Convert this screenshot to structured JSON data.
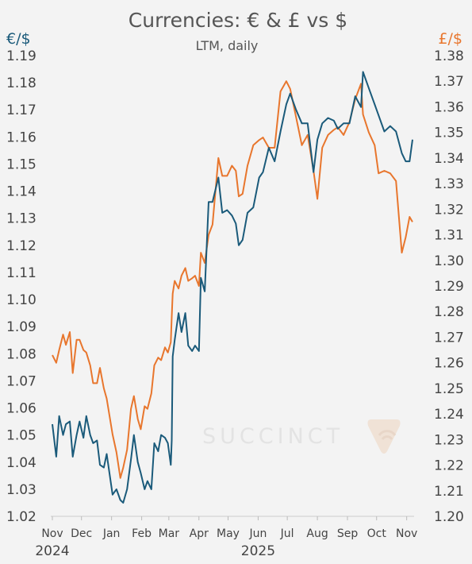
{
  "chart_data": {
    "type": "line",
    "title": "Currencies: € & £ vs $",
    "subtitle": "LTM, daily",
    "y_left": {
      "label": "€/$",
      "range": [
        1.02,
        1.19
      ],
      "ticks": [
        "1.19",
        "1.18",
        "1.17",
        "1.16",
        "1.15",
        "1.14",
        "1.13",
        "1.12",
        "1.11",
        "1.10",
        "1.09",
        "1.08",
        "1.07",
        "1.06",
        "1.05",
        "1.04",
        "1.03",
        "1.02"
      ]
    },
    "y_right": {
      "label": "£/$",
      "range": [
        1.2,
        1.38
      ],
      "ticks": [
        "1.38",
        "1.37",
        "1.36",
        "1.35",
        "1.34",
        "1.33",
        "1.32",
        "1.31",
        "1.30",
        "1.29",
        "1.28",
        "1.27",
        "1.26",
        "1.25",
        "1.24",
        "1.23",
        "1.22",
        "1.21",
        "1.20"
      ]
    },
    "x_months": [
      "Nov",
      "Dec",
      "Jan",
      "Feb",
      "Mar",
      "Apr",
      "May",
      "Jun",
      "Jul",
      "Aug",
      "Sep",
      "Oct",
      "Nov"
    ],
    "x_years": [
      {
        "label": "2024",
        "month_index": 0
      },
      {
        "label": "2025",
        "month_index": 7
      }
    ],
    "grid": false,
    "colors": {
      "eur": "#1a5a7a",
      "gbp": "#e8762d",
      "text": "#444444",
      "watermark": "#e3e3e3"
    },
    "watermark": {
      "text": "SUCCINCT",
      "icon": "succinct-logo-icon"
    },
    "series": [
      {
        "axis": "left",
        "color": "#1a5a7a",
        "x": [
          "2024-11-01",
          "2024-11-05",
          "2024-11-08",
          "2024-11-12",
          "2024-11-15",
          "2024-11-19",
          "2024-11-22",
          "2024-11-26",
          "2024-11-29",
          "2024-12-03",
          "2024-12-06",
          "2024-12-10",
          "2024-12-13",
          "2024-12-17",
          "2024-12-20",
          "2024-12-24",
          "2024-12-27",
          "2025-01-02",
          "2025-01-06",
          "2025-01-10",
          "2025-01-13",
          "2025-01-17",
          "2025-01-21",
          "2025-01-24",
          "2025-01-28",
          "2025-01-31",
          "2025-02-04",
          "2025-02-07",
          "2025-02-11",
          "2025-02-14",
          "2025-02-18",
          "2025-02-21",
          "2025-02-25",
          "2025-02-28",
          "2025-03-03",
          "2025-03-04",
          "2025-03-05",
          "2025-03-07",
          "2025-03-11",
          "2025-03-14",
          "2025-03-18",
          "2025-03-21",
          "2025-03-25",
          "2025-03-28",
          "2025-04-01",
          "2025-04-03",
          "2025-04-07",
          "2025-04-11",
          "2025-04-15",
          "2025-04-21",
          "2025-04-25",
          "2025-04-30",
          "2025-05-05",
          "2025-05-09",
          "2025-05-12",
          "2025-05-16",
          "2025-05-21",
          "2025-05-27",
          "2025-06-02",
          "2025-06-06",
          "2025-06-12",
          "2025-06-18",
          "2025-06-24",
          "2025-06-30",
          "2025-07-04",
          "2025-07-10",
          "2025-07-16",
          "2025-07-22",
          "2025-07-28",
          "2025-08-01",
          "2025-08-06",
          "2025-08-12",
          "2025-08-18",
          "2025-08-22",
          "2025-08-28",
          "2025-09-03",
          "2025-09-09",
          "2025-09-15",
          "2025-09-17",
          "2025-09-23",
          "2025-09-29",
          "2025-10-03",
          "2025-10-09",
          "2025-10-15",
          "2025-10-21",
          "2025-10-27",
          "2025-10-31",
          "2025-11-04",
          "2025-11-07"
        ],
        "values": [
          1.054,
          1.042,
          1.057,
          1.05,
          1.054,
          1.055,
          1.042,
          1.05,
          1.055,
          1.049,
          1.057,
          1.05,
          1.047,
          1.048,
          1.039,
          1.038,
          1.043,
          1.028,
          1.03,
          1.026,
          1.025,
          1.03,
          1.041,
          1.05,
          1.04,
          1.036,
          1.03,
          1.033,
          1.03,
          1.047,
          1.044,
          1.05,
          1.049,
          1.047,
          1.039,
          1.048,
          1.079,
          1.085,
          1.095,
          1.088,
          1.095,
          1.083,
          1.081,
          1.083,
          1.081,
          1.108,
          1.103,
          1.136,
          1.136,
          1.145,
          1.132,
          1.133,
          1.131,
          1.128,
          1.12,
          1.122,
          1.132,
          1.134,
          1.145,
          1.147,
          1.156,
          1.151,
          1.162,
          1.172,
          1.176,
          1.17,
          1.165,
          1.165,
          1.147,
          1.159,
          1.165,
          1.167,
          1.166,
          1.163,
          1.165,
          1.165,
          1.175,
          1.171,
          1.184,
          1.178,
          1.172,
          1.168,
          1.162,
          1.164,
          1.162,
          1.154,
          1.151,
          1.151,
          1.159
        ]
      },
      {
        "axis": "right",
        "color": "#e8762d",
        "x": [
          "2024-11-01",
          "2024-11-05",
          "2024-11-08",
          "2024-11-12",
          "2024-11-15",
          "2024-11-19",
          "2024-11-22",
          "2024-11-26",
          "2024-11-29",
          "2024-12-03",
          "2024-12-06",
          "2024-12-10",
          "2024-12-13",
          "2024-12-17",
          "2024-12-20",
          "2024-12-24",
          "2024-12-27",
          "2025-01-02",
          "2025-01-06",
          "2025-01-10",
          "2025-01-13",
          "2025-01-17",
          "2025-01-21",
          "2025-01-24",
          "2025-01-28",
          "2025-01-31",
          "2025-02-04",
          "2025-02-07",
          "2025-02-11",
          "2025-02-14",
          "2025-02-18",
          "2025-02-21",
          "2025-02-25",
          "2025-02-28",
          "2025-03-03",
          "2025-03-04",
          "2025-03-05",
          "2025-03-07",
          "2025-03-11",
          "2025-03-14",
          "2025-03-18",
          "2025-03-21",
          "2025-03-25",
          "2025-03-28",
          "2025-04-01",
          "2025-04-03",
          "2025-04-07",
          "2025-04-11",
          "2025-04-15",
          "2025-04-21",
          "2025-04-25",
          "2025-04-30",
          "2025-05-05",
          "2025-05-09",
          "2025-05-12",
          "2025-05-16",
          "2025-05-21",
          "2025-05-27",
          "2025-06-02",
          "2025-06-06",
          "2025-06-12",
          "2025-06-18",
          "2025-06-24",
          "2025-06-30",
          "2025-07-04",
          "2025-07-10",
          "2025-07-16",
          "2025-07-22",
          "2025-07-28",
          "2025-08-01",
          "2025-08-06",
          "2025-08-12",
          "2025-08-18",
          "2025-08-22",
          "2025-08-28",
          "2025-09-03",
          "2025-09-09",
          "2025-09-15",
          "2025-09-17",
          "2025-09-23",
          "2025-09-29",
          "2025-10-03",
          "2025-10-09",
          "2025-10-15",
          "2025-10-21",
          "2025-10-27",
          "2025-10-31",
          "2025-11-04",
          "2025-11-07"
        ],
        "values": [
          1.263,
          1.26,
          1.265,
          1.271,
          1.267,
          1.272,
          1.256,
          1.269,
          1.269,
          1.265,
          1.264,
          1.259,
          1.252,
          1.252,
          1.258,
          1.25,
          1.246,
          1.232,
          1.225,
          1.215,
          1.219,
          1.226,
          1.242,
          1.247,
          1.238,
          1.234,
          1.243,
          1.242,
          1.248,
          1.259,
          1.262,
          1.261,
          1.266,
          1.264,
          1.268,
          1.278,
          1.287,
          1.292,
          1.289,
          1.294,
          1.297,
          1.292,
          1.293,
          1.294,
          1.29,
          1.303,
          1.299,
          1.31,
          1.314,
          1.34,
          1.333,
          1.333,
          1.337,
          1.335,
          1.325,
          1.326,
          1.337,
          1.345,
          1.347,
          1.348,
          1.344,
          1.344,
          1.366,
          1.37,
          1.367,
          1.356,
          1.345,
          1.349,
          1.335,
          1.324,
          1.344,
          1.349,
          1.351,
          1.352,
          1.349,
          1.354,
          1.363,
          1.369,
          1.357,
          1.35,
          1.345,
          1.334,
          1.335,
          1.334,
          1.331,
          1.303,
          1.309,
          1.317,
          1.315
        ]
      }
    ]
  }
}
